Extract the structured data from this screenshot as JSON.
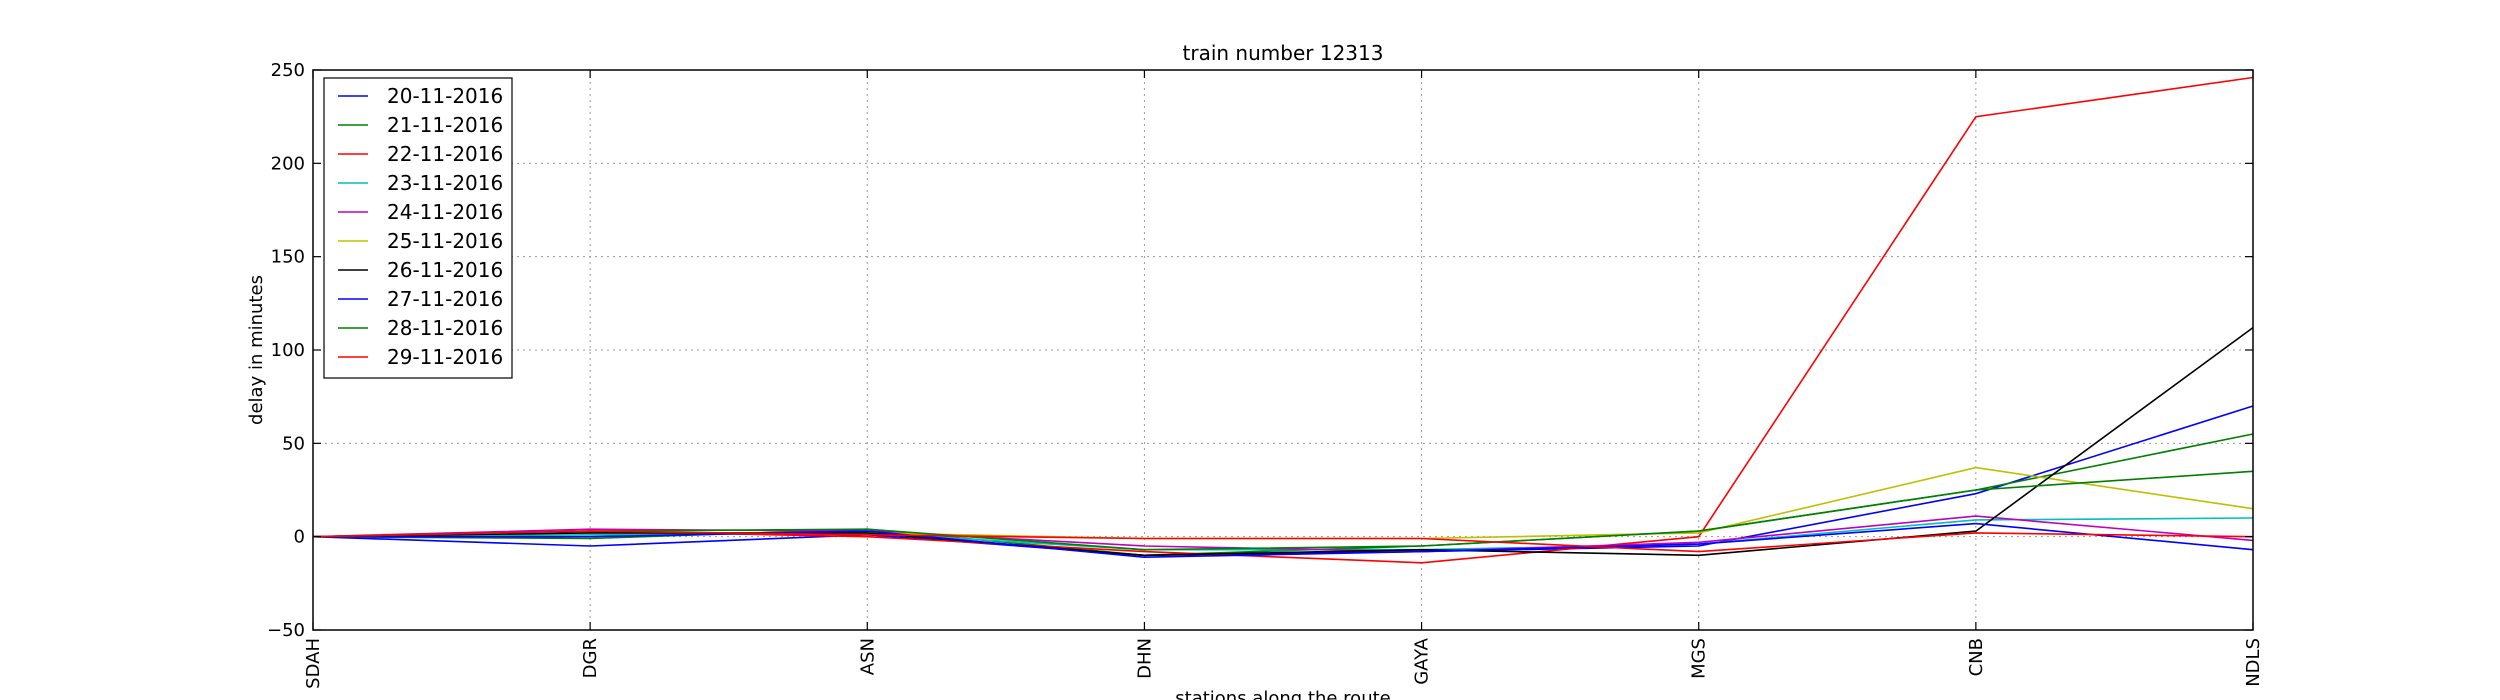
{
  "chart_data": {
    "type": "line",
    "title": "train number 12313",
    "xlabel": "stations along the route",
    "ylabel": "delay in minutes",
    "categories": [
      "SDAH",
      "DGR",
      "ASN",
      "DHN",
      "GAYA",
      "MGS",
      "CNB",
      "NDLS"
    ],
    "ylim": [
      -50,
      250
    ],
    "yticks": [
      -50,
      0,
      50,
      100,
      150,
      200,
      250
    ],
    "grid": true,
    "legend_position": "top-left",
    "series": [
      {
        "name": "20-11-2016",
        "color": "#0000ff",
        "values": [
          0,
          -5,
          1,
          -10,
          -8,
          -5,
          23,
          70
        ]
      },
      {
        "name": "21-11-2016",
        "color": "#008000",
        "values": [
          0,
          -1,
          4,
          -10,
          -5,
          3,
          25,
          55
        ]
      },
      {
        "name": "22-11-2016",
        "color": "#ff0000",
        "values": [
          0,
          3,
          0,
          -8,
          -14,
          0,
          225,
          246
        ]
      },
      {
        "name": "23-11-2016",
        "color": "#00bfbf",
        "values": [
          0,
          1,
          2,
          -7,
          -7,
          -4,
          9,
          10
        ]
      },
      {
        "name": "24-11-2016",
        "color": "#bf00bf",
        "values": [
          0,
          4,
          3,
          -5,
          -8,
          -3,
          11,
          -2
        ]
      },
      {
        "name": "25-11-2016",
        "color": "#bfbf00",
        "values": [
          0,
          2,
          2,
          -1,
          -1,
          2,
          37,
          15
        ]
      },
      {
        "name": "26-11-2016",
        "color": "#000000",
        "values": [
          0,
          2,
          2,
          -10,
          -7,
          -10,
          3,
          112
        ]
      },
      {
        "name": "27-11-2016",
        "color": "#0000ff",
        "values": [
          0,
          0,
          3,
          -11,
          -8,
          -4,
          7,
          -7
        ]
      },
      {
        "name": "28-11-2016",
        "color": "#008000",
        "values": [
          0,
          3,
          4,
          -7,
          -5,
          3,
          25,
          35
        ]
      },
      {
        "name": "29-11-2016",
        "color": "#ff0000",
        "values": [
          0,
          3,
          1,
          -1,
          -1,
          -8,
          2,
          0
        ]
      }
    ]
  }
}
